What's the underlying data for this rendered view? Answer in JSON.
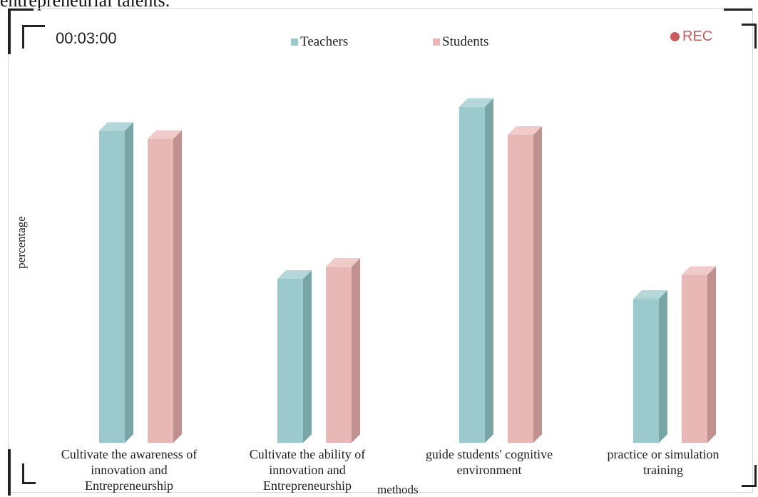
{
  "caption": "entrepreneurial talents.",
  "overlay": {
    "timer": "00:03:00",
    "rec_label": "REC",
    "rec_color": "#c85a5a"
  },
  "colors": {
    "teachers_front": "#9cc9cb",
    "teachers_side": "#79a5a7",
    "teachers_top": "#b4d8da",
    "students_front": "#e8b8b6",
    "students_side": "#c0918f",
    "students_top": "#f0cbc9"
  },
  "chart_data": {
    "type": "bar",
    "categories": [
      "Cultivate the awareness of innovation and Entrepreneurship",
      "Cultivate the ability of innovation and Entrepreneurship",
      "guide students' cognitive environment",
      "practice or simulation training"
    ],
    "category_lines": [
      [
        "Cultivate the awareness of",
        "innovation and",
        "Entrepreneurship"
      ],
      [
        "Cultivate the ability of",
        "innovation and",
        "Entrepreneurship"
      ],
      [
        "guide students' cognitive",
        "environment"
      ],
      [
        "practice or simulation",
        "training"
      ]
    ],
    "series": [
      {
        "name": "Teachers",
        "values": [
          0.78,
          0.41,
          0.84,
          0.36
        ]
      },
      {
        "name": "Students",
        "values": [
          0.76,
          0.44,
          0.77,
          0.42
        ]
      }
    ],
    "xlabel": "methods",
    "ylabel": "percentage",
    "ylim": [
      0,
      1
    ],
    "legend_position": "top-center",
    "grid": false,
    "style": "3d-bar"
  }
}
